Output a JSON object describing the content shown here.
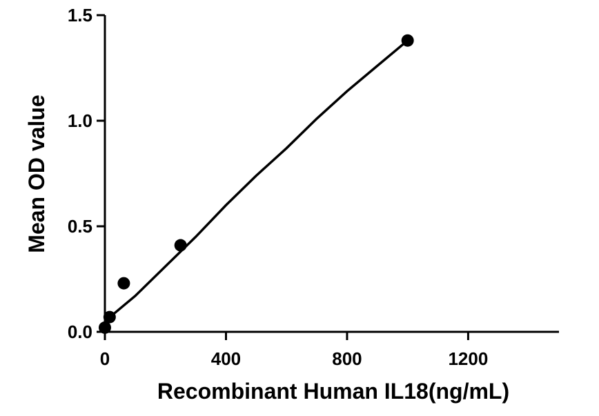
{
  "chart_data": {
    "type": "scatter",
    "xlabel": "Recombinant Human IL18(ng/mL)",
    "ylabel": "Mean OD value",
    "xlim": [
      0,
      1500
    ],
    "ylim": [
      0,
      1.5
    ],
    "x_ticks": [
      0,
      400,
      800,
      1200
    ],
    "x_tick_labels": [
      "0",
      "400",
      "800",
      "1200"
    ],
    "y_ticks": [
      0,
      0.5,
      1.0,
      1.5
    ],
    "y_tick_labels": [
      "0.0",
      "0.5",
      "1.0",
      "1.5"
    ],
    "series": [
      {
        "x": [
          0,
          15.6,
          62.5,
          250,
          1000
        ],
        "y": [
          0.02,
          0.07,
          0.23,
          0.41,
          1.38
        ],
        "marker": "circle",
        "color": "#000000"
      }
    ],
    "fit_curve": {
      "x": [
        0,
        50,
        100,
        200,
        300,
        400,
        500,
        600,
        700,
        800,
        900,
        1000
      ],
      "y": [
        0.05,
        0.11,
        0.17,
        0.31,
        0.45,
        0.6,
        0.74,
        0.87,
        1.01,
        1.14,
        1.26,
        1.38
      ],
      "color": "#000000"
    },
    "grid": false
  }
}
